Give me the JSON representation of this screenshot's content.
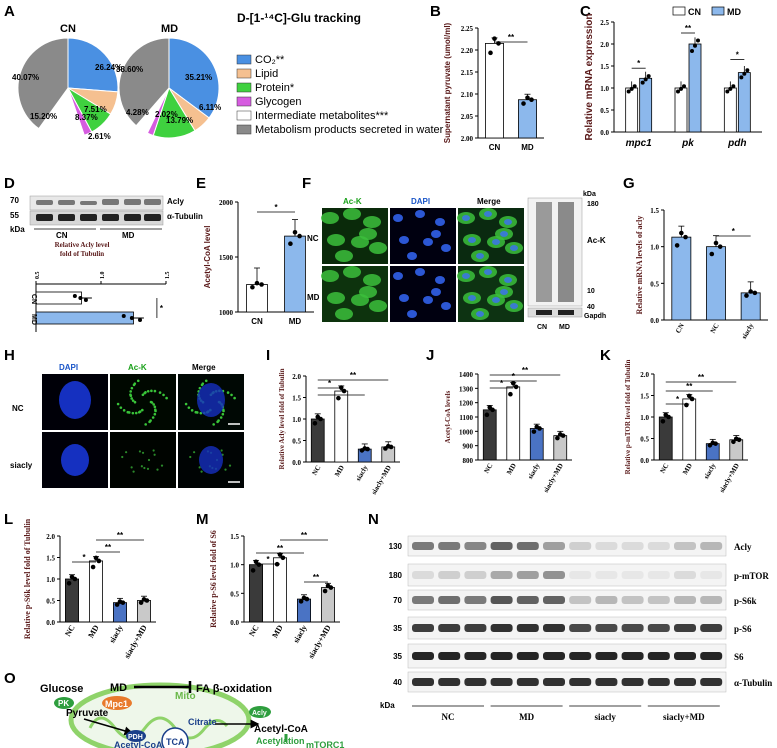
{
  "panels": [
    "A",
    "B",
    "C",
    "D",
    "E",
    "F",
    "G",
    "H",
    "I",
    "J",
    "K",
    "L",
    "M",
    "N",
    "O"
  ],
  "colors": {
    "co2": "#4a90e2",
    "lipid": "#f5c090",
    "protein": "#3fd13f",
    "glycogen": "#d65ce0",
    "intermediate": "#ffffff",
    "water": "#8a8a8a",
    "cn_bar": "#ffffff",
    "md_bar": "#8cb8ec",
    "nc_dark": "#3a3a3a",
    "siacly": "#4a73c4",
    "siacly_md": "#c9c9c9",
    "green": "#2e9e3e",
    "dapi": "#1a55c8",
    "acky": "#18a018"
  },
  "pie": {
    "title": "D-[1-¹⁴C]-Glu tracking",
    "legend": [
      "CO₂**",
      "Lipid",
      "Protein*",
      "Glycogen",
      "Intermediate metabolites***",
      "Metabolism products secreted in water"
    ]
  },
  "chart_data": [
    {
      "type": "pie",
      "panel": "A",
      "group": "CN",
      "labels": [
        "CO₂",
        "Lipid",
        "Protein",
        "Glycogen",
        "Intermediate metabolites",
        "Metabolism products secreted in water"
      ],
      "values": [
        26.24,
        7.51,
        8.37,
        2.61,
        15.2,
        40.07
      ],
      "value_labels": [
        "26.24%",
        "7.51%",
        "8.37%",
        "2.61%",
        "15.20%",
        "40.07%"
      ]
    },
    {
      "type": "pie",
      "panel": "A",
      "group": "MD",
      "labels": [
        "CO₂",
        "Lipid",
        "Protein",
        "Glycogen",
        "Intermediate metabolites",
        "Metabolism products secreted in water"
      ],
      "values": [
        35.21,
        6.11,
        13.79,
        2.02,
        4.28,
        38.6
      ],
      "value_labels": [
        "35.21%",
        "6.11%",
        "13.79%",
        "2.02%",
        "4.28%",
        "38.60%"
      ]
    },
    {
      "type": "bar",
      "panel": "B",
      "categories": [
        "CN",
        "MD"
      ],
      "values": [
        2.215,
        2.087
      ],
      "ylabel": "Supernatant pyruvate (umol/ml)",
      "ylim": [
        2.0,
        2.25
      ],
      "yticks": [
        "2.00",
        "2.05",
        "2.10",
        "2.15",
        "2.20",
        "2.25"
      ],
      "sig": "**"
    },
    {
      "type": "bar",
      "panel": "C",
      "categories": [
        "mpc1",
        "pk",
        "pdh"
      ],
      "series": [
        {
          "name": "CN",
          "values": [
            1.0,
            1.0,
            1.0
          ]
        },
        {
          "name": "MD",
          "values": [
            1.22,
            2.0,
            1.35
          ]
        }
      ],
      "ylabel": "Relative mRNA expression",
      "ylim": [
        0,
        2.5
      ],
      "yticks": [
        "0.0",
        "0.5",
        "1.0",
        "1.5",
        "2.0",
        "2.5"
      ],
      "sig": [
        "*",
        "**",
        "*"
      ]
    },
    {
      "type": "bar",
      "panel": "D",
      "categories": [
        "CN",
        "MD"
      ],
      "values": [
        0.85,
        1.25
      ],
      "xlabel": "Relative Acly level fold of Tubulin",
      "xticks": [
        "0.5",
        "1.0",
        "1.5"
      ],
      "xlim": [
        0.5,
        1.5
      ],
      "sig": "*"
    },
    {
      "type": "bar",
      "panel": "E",
      "categories": [
        "CN",
        "MD"
      ],
      "values": [
        1250,
        1690
      ],
      "ylabel": "Acetyl-CoA level",
      "sig": "*"
    },
    {
      "type": "bar",
      "panel": "G",
      "categories": [
        "CN",
        "NC",
        "siacly"
      ],
      "values": [
        1.13,
        1.0,
        0.37
      ],
      "ylabel": "Relative mRNA levels of acly",
      "ylim": [
        0,
        1.5
      ],
      "yticks": [
        "0.0",
        "0.5",
        "1.0",
        "1.5"
      ],
      "sig": "*"
    },
    {
      "type": "bar",
      "panel": "I",
      "categories": [
        "NC",
        "MD",
        "siacly",
        "siacly+MD"
      ],
      "values": [
        1.0,
        1.65,
        0.3,
        0.35
      ],
      "ylabel": "Relative Acly level fold of Tubulin",
      "ylim": [
        0,
        2.0
      ],
      "yticks": [
        "0.0",
        "0.5",
        "1.0",
        "1.5",
        "2.0"
      ],
      "sig": [
        "*",
        "*",
        "**"
      ]
    },
    {
      "type": "bar",
      "panel": "J",
      "categories": [
        "NC",
        "MD",
        "siacly",
        "siacly+MD"
      ],
      "values": [
        1150,
        1310,
        1020,
        970
      ],
      "ylabel": "Acetyl-CoA levels",
      "ylim": [
        800,
        1400
      ],
      "yticks": [
        "800",
        "900",
        "1000",
        "1100",
        "1200",
        "1300",
        "1400"
      ],
      "sig": [
        "*",
        "*",
        "**"
      ]
    },
    {
      "type": "bar",
      "panel": "K",
      "categories": [
        "NC",
        "MD",
        "siacly",
        "siacly+MD"
      ],
      "values": [
        1.0,
        1.42,
        0.38,
        0.47
      ],
      "ylabel": "Relative p-mTOR level fold of Tubulin",
      "ylim": [
        0,
        2.0
      ],
      "yticks": [
        "0.0",
        "0.5",
        "1.0",
        "1.5",
        "2.0"
      ],
      "sig": [
        "*",
        "**",
        "**"
      ]
    },
    {
      "type": "bar",
      "panel": "L",
      "categories": [
        "NC",
        "MD",
        "siacly",
        "siacly+MD"
      ],
      "values": [
        1.0,
        1.42,
        0.45,
        0.5
      ],
      "ylabel": "Relative p-S6k level fold of Tubulin",
      "ylim": [
        0,
        2.0
      ],
      "yticks": [
        "0.0",
        "0.5",
        "1.0",
        "1.5",
        "2.0"
      ],
      "sig": [
        "*",
        "**",
        "**"
      ]
    },
    {
      "type": "bar",
      "panel": "M",
      "categories": [
        "NC",
        "MD",
        "siacly",
        "siacly+MD"
      ],
      "values": [
        1.0,
        1.12,
        0.4,
        0.6
      ],
      "ylabel": "Relative p-S6 level fold of S6",
      "ylim": [
        0,
        1.5
      ],
      "yticks": [
        "0.0",
        "0.5",
        "1.0",
        "1.5"
      ],
      "sig": [
        "*",
        "**",
        "**",
        "**"
      ]
    }
  ],
  "d": {
    "acly": "Acly",
    "tub": "α-Tubulin",
    "m70": "70",
    "m55": "55",
    "kda": "kDa",
    "cn": "CN",
    "md": "MD",
    "e_ticks": [
      "1000",
      "1500",
      "2000"
    ]
  },
  "f": {
    "hdr": [
      "Ac-K",
      "DAPI",
      "Merge"
    ],
    "rows": [
      "NC",
      "MD"
    ],
    "kda": "kDa",
    "m180": "180",
    "m10": "10",
    "m40": "40",
    "ack": "Ac-K",
    "gapdh": "Gapdh",
    "cn": "CN",
    "md": "MD"
  },
  "h": {
    "hdr": [
      "DAPI",
      "Ac-K",
      "Merge"
    ],
    "rows": [
      "NC",
      "siacly"
    ]
  },
  "n": {
    "markers": [
      "130",
      "180",
      "70",
      "35",
      "35",
      "40"
    ],
    "proteins": [
      "Acly",
      "p-mTOR",
      "p-S6k",
      "p-S6",
      "S6",
      "α-Tubulin"
    ],
    "groups": [
      "NC",
      "MD",
      "siacly",
      "siacly+MD"
    ],
    "kda": "kDa"
  },
  "o": {
    "glucose": "Glucose",
    "pk": "PK",
    "pyruvate": "Pyruvate",
    "md": "MD",
    "fa": "FA β-oxidation",
    "mpc1": "Mpc1",
    "mito": "Mito",
    "pdh": "PDH",
    "acoa": "Acetyl-CoA",
    "tca": "TCA",
    "citrate": "Citrate",
    "acly": "Acly",
    "acoa2": "Acetyl-CoA",
    "acetylation": "Acetylation",
    "mtorc1": "mTORC1"
  }
}
